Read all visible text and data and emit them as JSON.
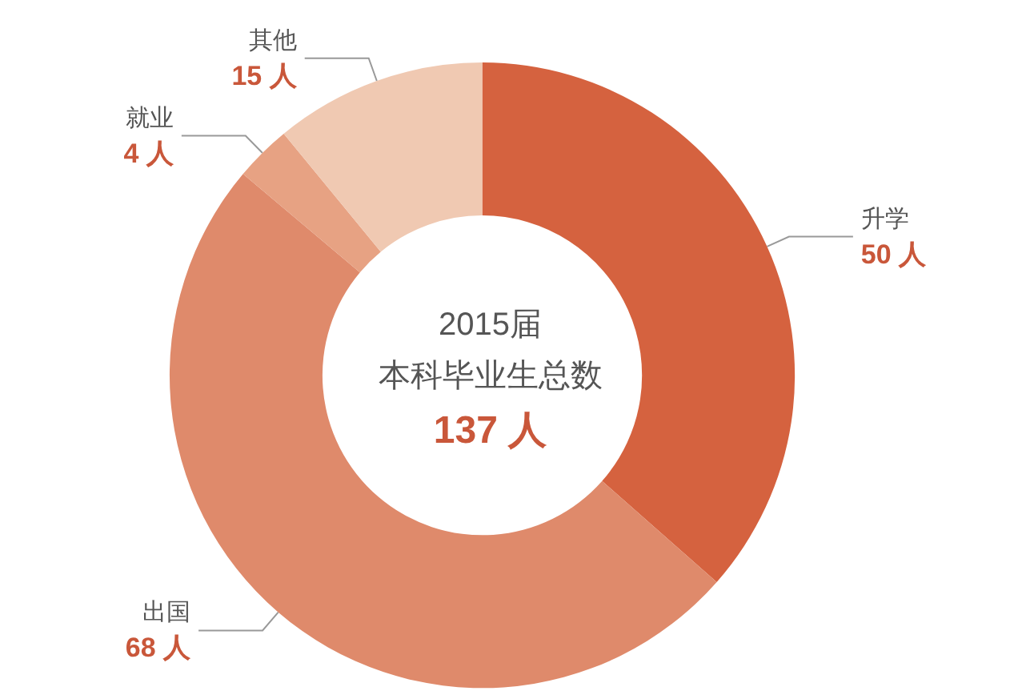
{
  "chart_data": {
    "type": "donut",
    "title": "2015届",
    "subtitle": "本科毕业生总数",
    "annotations": [
      "137 人"
    ],
    "categories": [
      "升学",
      "出国",
      "就业",
      "其他"
    ],
    "values": [
      50,
      68,
      4,
      15
    ],
    "value_labels": [
      "50 人",
      "68 人",
      "4 人",
      "15 人"
    ],
    "colors": [
      "#d5623f",
      "#df8a6b",
      "#e7a283",
      "#f0c9b2"
    ]
  }
}
